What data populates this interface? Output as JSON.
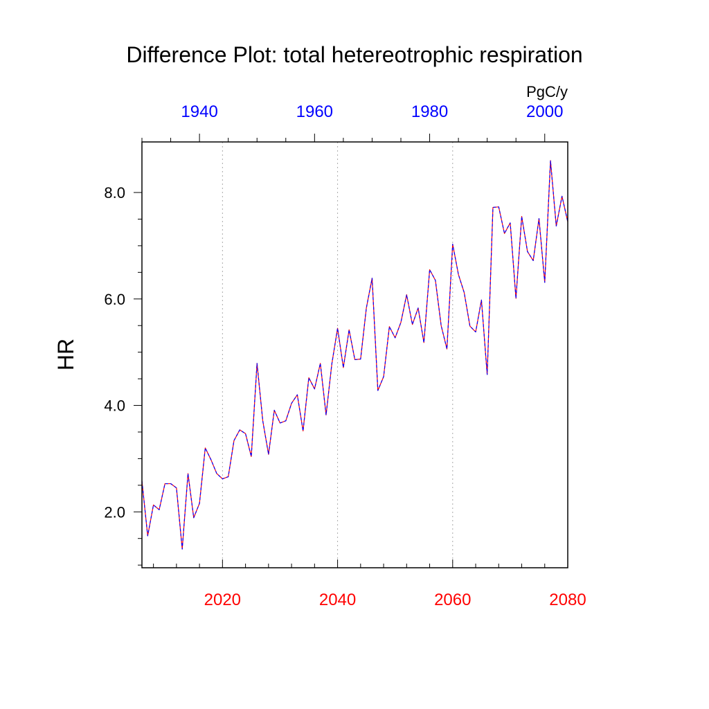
{
  "chart_data": {
    "type": "line",
    "title": "Difference Plot: total hetereotrophic respiration",
    "ylabel": "HR",
    "units": "PgC/y",
    "ylim": [
      0.95,
      8.95
    ],
    "yticks": [
      2.0,
      4.0,
      6.0,
      8.0
    ],
    "ytick_labels": [
      "2.0",
      "4.0",
      "6.0",
      "8.0"
    ],
    "x_bottom": {
      "range": [
        2006,
        2080
      ],
      "ticks": [
        2020,
        2040,
        2060,
        2080
      ],
      "tick_labels": [
        "2020",
        "2040",
        "2060",
        "2080"
      ],
      "color": "#ff0000"
    },
    "x_top": {
      "range": [
        1930,
        2004
      ],
      "ticks": [
        1940,
        1960,
        1980,
        2000
      ],
      "tick_labels": [
        "1940",
        "1960",
        "1980",
        "2000"
      ],
      "color": "#0000ff"
    },
    "grid": "vertical dotted at bottom-axis major ticks",
    "series": [
      {
        "color": "#ff0000",
        "style": "solid",
        "x": [
          2006,
          2007,
          2008,
          2009,
          2010,
          2011,
          2012,
          2013,
          2014,
          2015,
          2016,
          2017,
          2018,
          2019,
          2020,
          2021,
          2022,
          2023,
          2024,
          2025,
          2026,
          2027,
          2028,
          2029,
          2030,
          2031,
          2032,
          2033,
          2034,
          2035,
          2036,
          2037,
          2038,
          2039,
          2040,
          2041,
          2042,
          2043,
          2044,
          2045,
          2046,
          2047,
          2048,
          2049,
          2050,
          2051,
          2052,
          2053,
          2054,
          2055,
          2056,
          2057,
          2058,
          2059,
          2060,
          2061,
          2062,
          2063,
          2064,
          2065,
          2066,
          2067,
          2068,
          2069,
          2070,
          2071,
          2072,
          2073,
          2074,
          2075,
          2076,
          2077,
          2078,
          2079,
          2080
        ],
        "values": [
          2.58,
          1.55,
          2.13,
          2.04,
          2.53,
          2.53,
          2.45,
          1.3,
          2.72,
          1.89,
          2.16,
          3.2,
          2.98,
          2.72,
          2.62,
          2.66,
          3.34,
          3.54,
          3.47,
          3.04,
          4.79,
          3.71,
          3.08,
          3.91,
          3.67,
          3.71,
          4.04,
          4.2,
          3.52,
          4.52,
          4.31,
          4.79,
          3.82,
          4.78,
          5.45,
          4.71,
          5.42,
          4.86,
          4.87,
          5.83,
          6.39,
          4.28,
          4.54,
          5.48,
          5.27,
          5.56,
          6.08,
          5.52,
          5.83,
          5.18,
          6.55,
          6.35,
          5.5,
          5.06,
          7.03,
          6.46,
          6.12,
          5.49,
          5.38,
          5.98,
          4.58,
          7.72,
          7.73,
          7.23,
          7.43,
          6.01,
          7.55,
          6.89,
          6.72,
          7.51,
          6.31,
          8.6,
          7.37,
          7.93,
          7.45
        ]
      },
      {
        "color": "#0000ff",
        "style": "dashed",
        "x": [
          2006,
          2007,
          2008,
          2009,
          2010,
          2011,
          2012,
          2013,
          2014,
          2015,
          2016,
          2017,
          2018,
          2019,
          2020,
          2021,
          2022,
          2023,
          2024,
          2025,
          2026,
          2027,
          2028,
          2029,
          2030,
          2031,
          2032,
          2033,
          2034,
          2035,
          2036,
          2037,
          2038,
          2039,
          2040,
          2041,
          2042,
          2043,
          2044,
          2045,
          2046,
          2047,
          2048,
          2049,
          2050,
          2051,
          2052,
          2053,
          2054,
          2055,
          2056,
          2057,
          2058,
          2059,
          2060,
          2061,
          2062,
          2063,
          2064,
          2065,
          2066,
          2067,
          2068,
          2069,
          2070,
          2071,
          2072,
          2073,
          2074,
          2075,
          2076,
          2077,
          2078,
          2079,
          2080
        ],
        "values": [
          2.58,
          1.55,
          2.13,
          2.04,
          2.53,
          2.53,
          2.45,
          1.3,
          2.72,
          1.89,
          2.16,
          3.2,
          2.98,
          2.72,
          2.62,
          2.66,
          3.34,
          3.54,
          3.47,
          3.04,
          4.79,
          3.71,
          3.08,
          3.91,
          3.67,
          3.71,
          4.04,
          4.2,
          3.52,
          4.52,
          4.31,
          4.79,
          3.82,
          4.78,
          5.45,
          4.71,
          5.42,
          4.86,
          4.87,
          5.83,
          6.39,
          4.28,
          4.54,
          5.48,
          5.27,
          5.56,
          6.08,
          5.52,
          5.83,
          5.18,
          6.55,
          6.35,
          5.5,
          5.06,
          7.03,
          6.46,
          6.12,
          5.49,
          5.38,
          5.98,
          4.58,
          7.72,
          7.73,
          7.23,
          7.43,
          6.01,
          7.55,
          6.89,
          6.72,
          7.51,
          6.31,
          8.6,
          7.37,
          7.93,
          7.45
        ]
      }
    ]
  }
}
